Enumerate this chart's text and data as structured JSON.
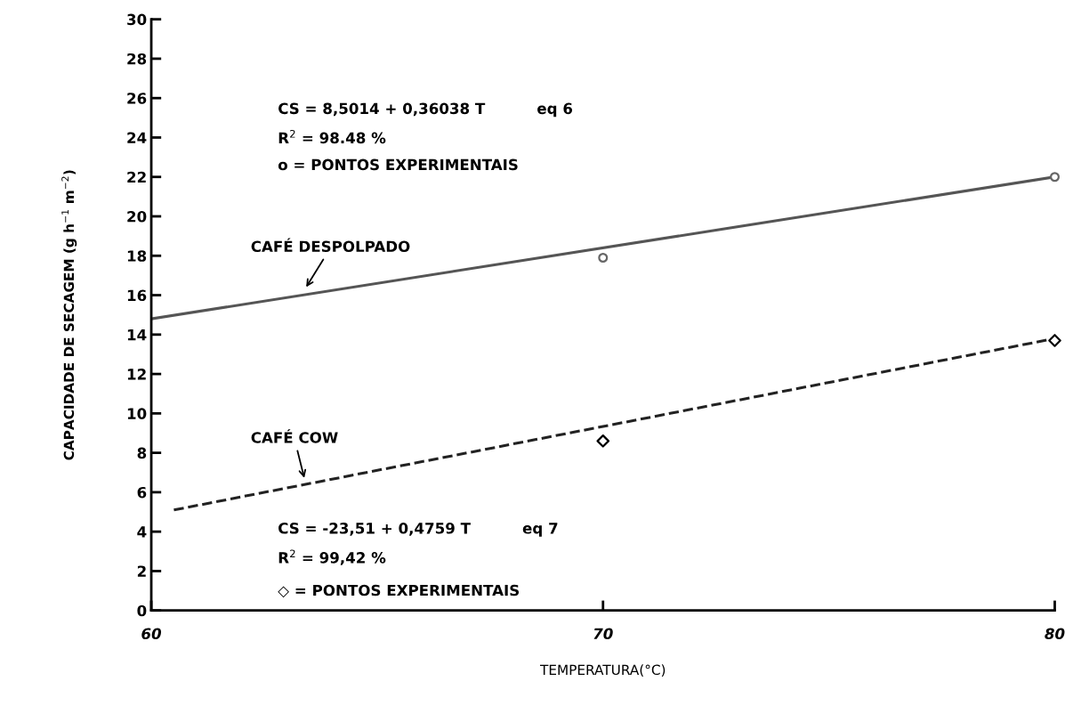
{
  "chart_data": {
    "type": "line",
    "xlabel": "TEMPERATURA(°C)",
    "ylabel": "CAPACIDADE DE SECAGEM (g h$^{−1}$ m$^{−2}$)",
    "xlim": [
      60,
      80
    ],
    "ylim": [
      0,
      30
    ],
    "xticks": [
      60,
      70,
      80
    ],
    "yticks": [
      0,
      2,
      4,
      6,
      8,
      10,
      12,
      14,
      16,
      18,
      20,
      22,
      24,
      26,
      28,
      30
    ],
    "grid": false,
    "legend": false,
    "series": [
      {
        "color": "#555555",
        "line_style": "solid",
        "marker": "none",
        "x": [
          60,
          80
        ],
        "values": [
          14.8,
          22.0
        ]
      },
      {
        "type": "scatter",
        "color": "#666666",
        "marker": "circle",
        "x": [
          70,
          80
        ],
        "values": [
          17.9,
          22.0
        ]
      },
      {
        "color": "#222222",
        "line_style": "dashed",
        "marker": "none",
        "x": [
          60.5,
          80
        ],
        "values": [
          5.1,
          13.8
        ]
      },
      {
        "type": "scatter",
        "color": "#000000",
        "marker": "diamond",
        "x": [
          70,
          80
        ],
        "values": [
          8.6,
          13.7
        ]
      }
    ],
    "annotations": [
      {
        "text": "CAFÉ DESPOLPADO",
        "x": 63.4,
        "y": 16.3
      },
      {
        "text": "CAFÉ COW",
        "x": 63.4,
        "y": 6.6
      },
      "CS = 8,5014 + 0,36038 T          eq 6",
      "R$^{2}$ = 98.48 %",
      "o = PONTOS EXPERIMENTAIS",
      "CS = -23,51 + 0,4759 T          eq 7",
      "R$^{2}$ = 99,42 %",
      "◇ = PONTOS EXPERIMENTAIS"
    ]
  }
}
